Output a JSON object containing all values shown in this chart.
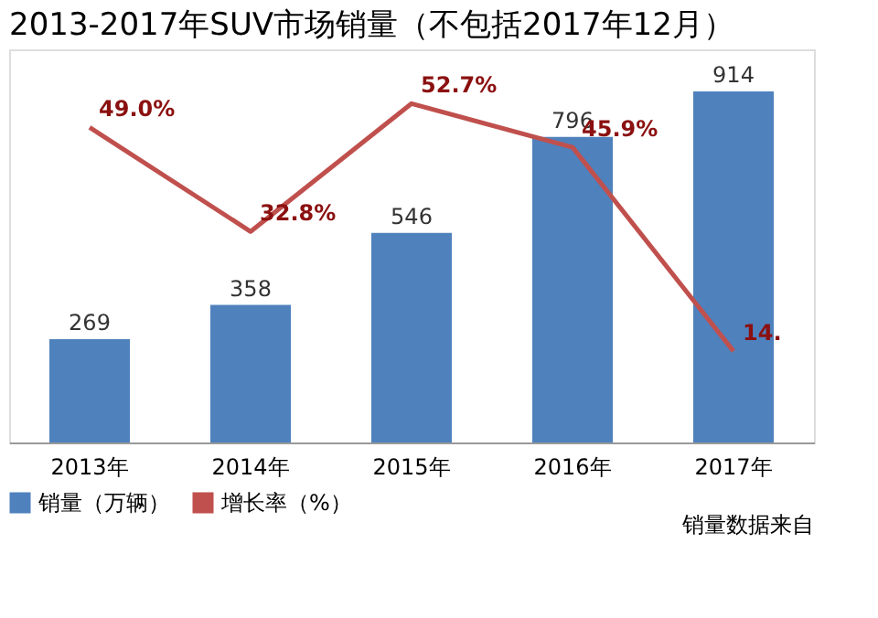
{
  "chart_data": {
    "type": "bar",
    "title": "2013-2017年SUV市场销量（不包括2017年12月）",
    "categories": [
      "2013年",
      "2014年",
      "2015年",
      "2016年",
      "2017年"
    ],
    "series": [
      {
        "name": "销量（万辆）",
        "color": "#4f81bd",
        "values": [
          269,
          358,
          546,
          796,
          914
        ],
        "value_labels": [
          "269",
          "358",
          "546",
          "796",
          "914"
        ]
      },
      {
        "name": "增长率（%）",
        "type": "line",
        "axis": "y2",
        "color": "#c0504d",
        "values": [
          49.0,
          32.8,
          52.7,
          45.9,
          14.2
        ],
        "value_labels": [
          "49.0%",
          "32.8%",
          "52.7%",
          "45.9%",
          "14."
        ]
      }
    ],
    "tick_labels": "x",
    "legend": "bottom",
    "annotations": [
      "销量数据来自"
    ]
  }
}
